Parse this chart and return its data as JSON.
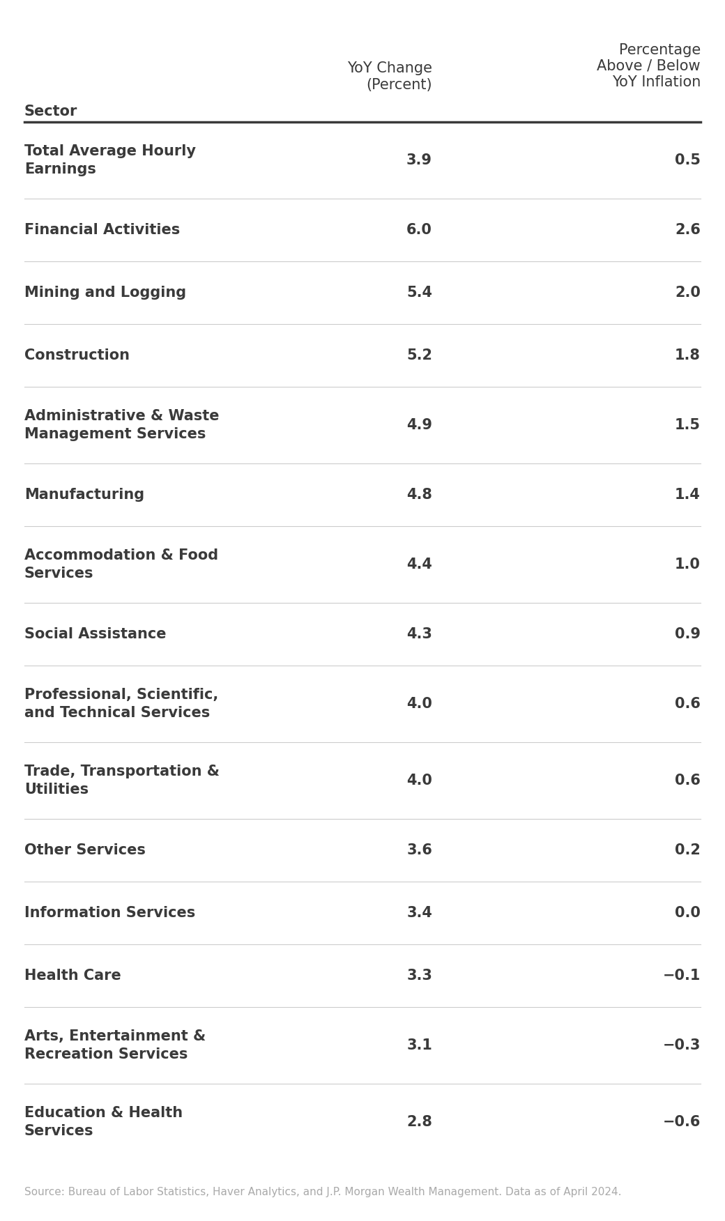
{
  "col1_header": "Sector",
  "col2_header": "YoY Change\n(Percent)",
  "col3_header": "Percentage\nAbove / Below\nYoY Inflation",
  "source": "Source: Bureau of Labor Statistics, Haver Analytics, and J.P. Morgan Wealth Management. Data as of April 2024.",
  "rows": [
    {
      "sector": "Total Average Hourly\nEarnings",
      "yoy": "3.9",
      "pct": "0.5"
    },
    {
      "sector": "Financial Activities",
      "yoy": "6.0",
      "pct": "2.6"
    },
    {
      "sector": "Mining and Logging",
      "yoy": "5.4",
      "pct": "2.0"
    },
    {
      "sector": "Construction",
      "yoy": "5.2",
      "pct": "1.8"
    },
    {
      "sector": "Administrative & Waste\nManagement Services",
      "yoy": "4.9",
      "pct": "1.5"
    },
    {
      "sector": "Manufacturing",
      "yoy": "4.8",
      "pct": "1.4"
    },
    {
      "sector": "Accommodation & Food\nServices",
      "yoy": "4.4",
      "pct": "1.0"
    },
    {
      "sector": "Social Assistance",
      "yoy": "4.3",
      "pct": "0.9"
    },
    {
      "sector": "Professional, Scientific,\nand Technical Services",
      "yoy": "4.0",
      "pct": "0.6"
    },
    {
      "sector": "Trade, Transportation &\nUtilities",
      "yoy": "4.0",
      "pct": "0.6"
    },
    {
      "sector": "Other Services",
      "yoy": "3.6",
      "pct": "0.2"
    },
    {
      "sector": "Information Services",
      "yoy": "3.4",
      "pct": "0.0"
    },
    {
      "sector": "Health Care",
      "yoy": "3.3",
      "pct": "−0.1"
    },
    {
      "sector": "Arts, Entertainment &\nRecreation Services",
      "yoy": "3.1",
      "pct": "−0.3"
    },
    {
      "sector": "Education & Health\nServices",
      "yoy": "2.8",
      "pct": "−0.6"
    }
  ],
  "bg_color": "#ffffff",
  "text_color": "#3a3a3a",
  "header_color": "#3a3a3a",
  "divider_color": "#3a3a3a",
  "row_divider_color": "#cccccc",
  "source_color": "#aaaaaa",
  "header_font_size": 15,
  "row_font_size": 15,
  "source_font_size": 11
}
